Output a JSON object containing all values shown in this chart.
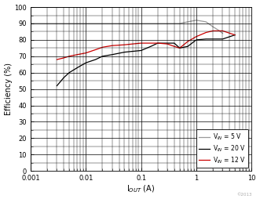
{
  "xlabel": "I$_{OUT}$ (A)",
  "ylabel": "Efficiency (%)",
  "xlim": [
    0.001,
    10
  ],
  "ylim": [
    0,
    100
  ],
  "yticks": [
    0,
    10,
    20,
    30,
    40,
    50,
    60,
    70,
    80,
    90,
    100
  ],
  "xticks_major": [
    0.001,
    0.01,
    0.1,
    1,
    10
  ],
  "xtick_labels": [
    "0.001",
    "0.01",
    "0.1",
    "1",
    "10"
  ],
  "legend": [
    {
      "label": "V$_{IN}$ = 20 V",
      "color": "#000000"
    },
    {
      "label": "V$_{IN}$ = 12 V",
      "color": "#cc0000"
    },
    {
      "label": "V$_{IN}$ = 5 V",
      "color": "#999999"
    }
  ],
  "series": {
    "vin20": {
      "x": [
        0.003,
        0.004,
        0.005,
        0.007,
        0.01,
        0.015,
        0.02,
        0.03,
        0.05,
        0.07,
        0.1,
        0.15,
        0.2,
        0.3,
        0.4,
        0.5,
        0.7,
        1.0,
        1.5,
        2.0,
        3.0,
        5.0
      ],
      "y": [
        52,
        57,
        60,
        63,
        66,
        68,
        70,
        71,
        72.5,
        73,
        73.5,
        76,
        78,
        78,
        78,
        75,
        76,
        80,
        80.5,
        80.5,
        80.5,
        83
      ]
    },
    "vin12": {
      "x": [
        0.003,
        0.004,
        0.005,
        0.007,
        0.01,
        0.015,
        0.02,
        0.03,
        0.05,
        0.07,
        0.1,
        0.15,
        0.2,
        0.3,
        0.4,
        0.5,
        0.7,
        1.0,
        1.5,
        2.0,
        3.0,
        5.0
      ],
      "y": [
        68,
        69,
        70,
        71,
        72,
        74,
        75.5,
        76.5,
        77,
        77.5,
        78,
        78,
        78,
        77.5,
        76,
        75,
        79,
        82,
        84.5,
        85.5,
        85.5,
        83
      ]
    },
    "vin5": {
      "x": [
        0.001,
        0.002,
        0.003,
        0.005,
        0.007,
        0.01,
        0.02,
        0.03,
        0.05,
        0.07,
        0.1,
        0.2,
        0.3,
        0.5,
        0.7,
        1.0,
        1.5,
        2.0,
        2.5,
        3.0
      ],
      "y": [
        90,
        90,
        90,
        90,
        90,
        90,
        90,
        90,
        90,
        90,
        90,
        90,
        90,
        90,
        91,
        92,
        91,
        88,
        86,
        84
      ]
    }
  },
  "watermark": "©2013",
  "background_color": "#ffffff",
  "grid_color": "#000000"
}
